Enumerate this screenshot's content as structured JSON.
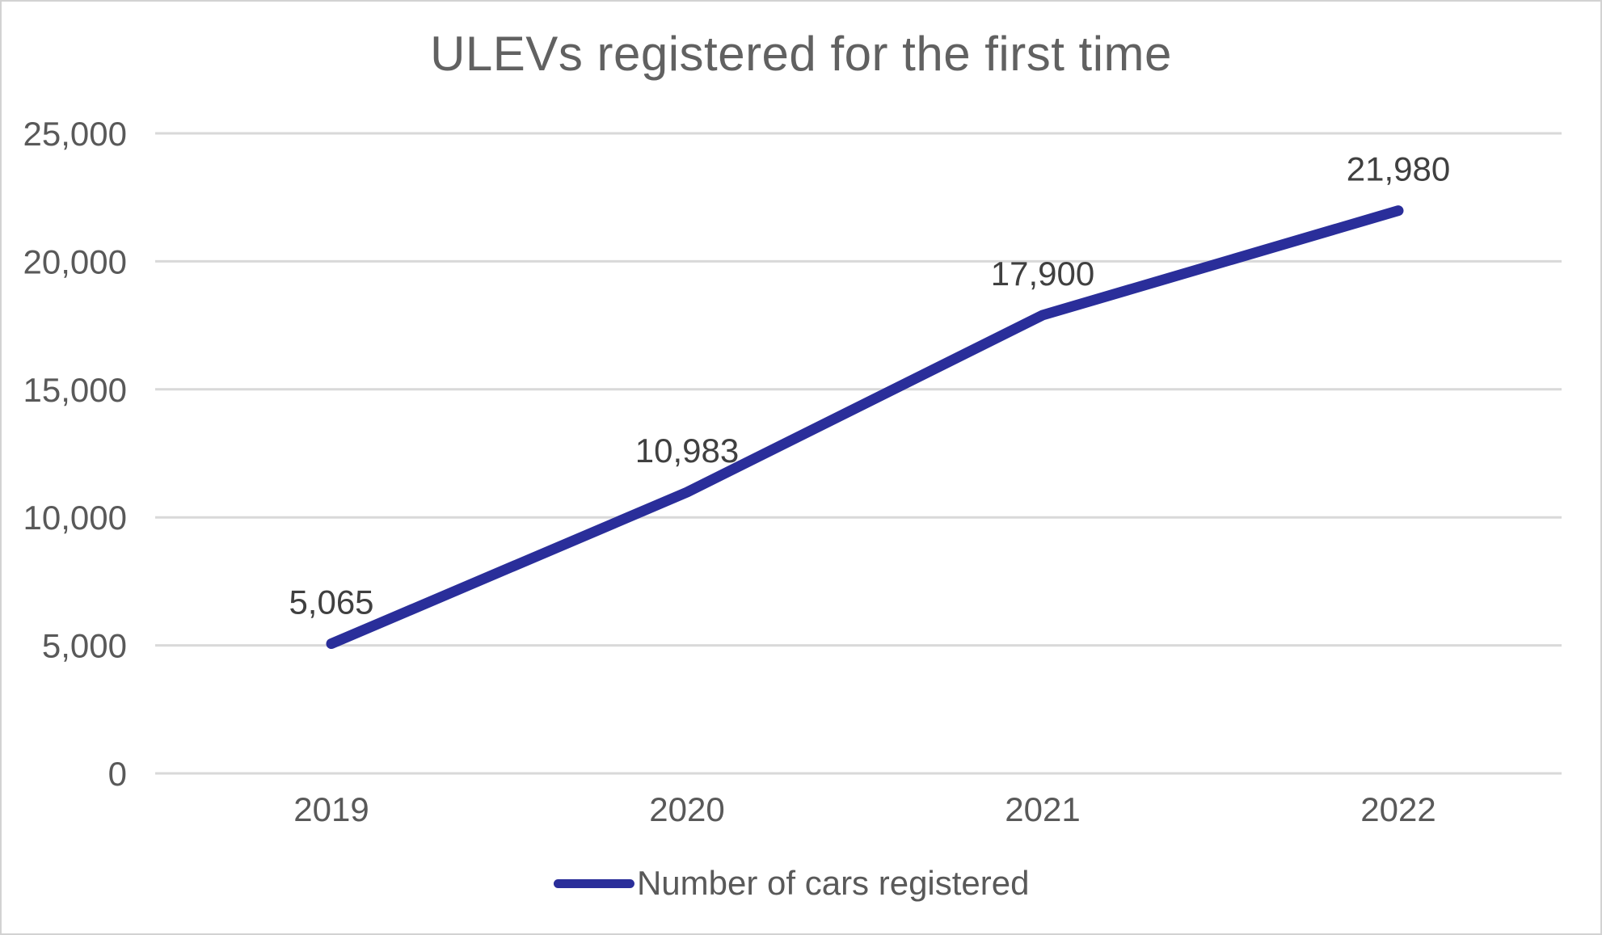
{
  "title": "ULEVs registered for the first time",
  "legend": {
    "series_label": "Number of cars registered"
  },
  "chart_data": {
    "type": "line",
    "title": "ULEVs registered for the first time",
    "categories": [
      "2019",
      "2020",
      "2021",
      "2022"
    ],
    "series": [
      {
        "name": "Number of cars registered",
        "values": [
          5065,
          10983,
          17900,
          21980
        ]
      }
    ],
    "data_labels": [
      "5,065",
      "10,983",
      "17,900",
      "21,980"
    ],
    "y_ticks": [
      0,
      5000,
      10000,
      15000,
      20000,
      25000
    ],
    "y_tick_labels": [
      "0",
      "5,000",
      "10,000",
      "15,000",
      "20,000",
      "25,000"
    ],
    "ylim": [
      0,
      25000
    ],
    "xlabel": "",
    "ylabel": "",
    "grid": true,
    "legend_position": "bottom",
    "colors": {
      "line": "#2a2e9a",
      "grid": "#d9d9d9",
      "axis_text": "#595959",
      "data_label": "#404040",
      "title_text": "#616161"
    }
  }
}
